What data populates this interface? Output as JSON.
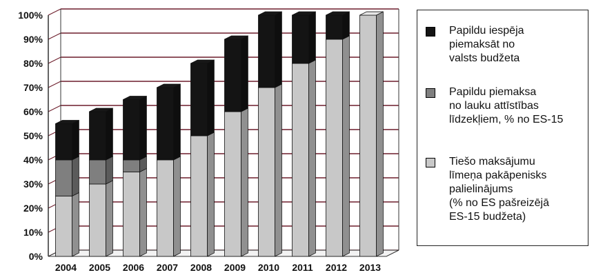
{
  "chart_data": {
    "type": "bar",
    "stacked": true,
    "style": "3d-stacked-column",
    "categories": [
      "2004",
      "2005",
      "2006",
      "2007",
      "2008",
      "2009",
      "2010",
      "2011",
      "2012",
      "2013"
    ],
    "series": [
      {
        "name": "Tiešo maksājumu līmeņa pakāpenisks palielinājums (% no ES pašreizējā ES-15 budžeta)",
        "values": [
          25,
          30,
          35,
          40,
          50,
          60,
          70,
          80,
          90,
          100
        ],
        "color": "#c8c8c8"
      },
      {
        "name": "Papildu piemaksa no lauku attīstības līdzekļiem, % no ES-15",
        "values": [
          15,
          10,
          5,
          0,
          0,
          0,
          0,
          0,
          0,
          0
        ],
        "color": "#7f7f7f"
      },
      {
        "name": "Papildu iespēja piemaksāt no valsts budžeta",
        "values": [
          15,
          20,
          25,
          30,
          30,
          30,
          30,
          20,
          10,
          0
        ],
        "color": "#141414"
      }
    ],
    "yticks": [
      "0%",
      "10%",
      "20%",
      "30%",
      "40%",
      "50%",
      "60%",
      "70%",
      "80%",
      "90%",
      "100%"
    ],
    "ylim": [
      0,
      100
    ],
    "grid": true,
    "grid_color": "#6b1c2a",
    "legend_position": "right",
    "title": "",
    "xlabel": "",
    "ylabel": ""
  },
  "legend": {
    "items": [
      {
        "lines": [
          "Papildu iespēja",
          "piemaksāt no",
          "valsts budžeta"
        ],
        "color": "#141414"
      },
      {
        "lines": [
          "Papildu piemaksa",
          "no lauku attīstības",
          "līdzekļiem, % no ES-15"
        ],
        "color": "#7f7f7f"
      },
      {
        "lines": [
          "Tiešo maksājumu",
          "līmeņa pakāpenisks",
          "palielinājums",
          "(% no ES pašreizējā",
          "ES-15 budžeta)"
        ],
        "color": "#c8c8c8"
      }
    ]
  }
}
